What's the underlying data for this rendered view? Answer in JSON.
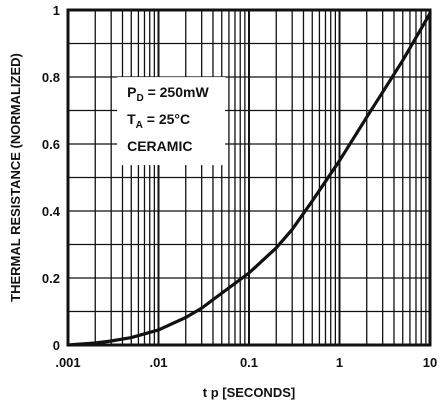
{
  "chart_data": {
    "type": "line",
    "title": "",
    "xlabel": "t p [SECONDS]",
    "ylabel": "THERMAL RESISTANCE (NORMALIZED)",
    "x_scale": "log",
    "xlim": [
      0.001,
      10
    ],
    "ylim": [
      0,
      1
    ],
    "grid": true,
    "x_ticks": [
      0.001,
      0.01,
      0.1,
      1,
      10
    ],
    "x_tick_labels": [
      ".001",
      ".01",
      "0.1",
      "1",
      "10"
    ],
    "y_ticks": [
      0,
      0.2,
      0.4,
      0.6,
      0.8,
      1
    ],
    "y_tick_labels": [
      "0",
      "0.2",
      "0.4",
      "0.6",
      "0.8",
      "1"
    ],
    "annotation": {
      "line1_main": "P",
      "line1_sub": "D",
      "line1_rest": " = 250mW",
      "line2_main": "T",
      "line2_sub": "A",
      "line2_rest": " = 25°C",
      "line3": "CERAMIC"
    },
    "series": [
      {
        "color": "#111111",
        "x": [
          0.001,
          0.002,
          0.003,
          0.005,
          0.01,
          0.02,
          0.03,
          0.05,
          0.1,
          0.2,
          0.3,
          0.5,
          1,
          2,
          3,
          5,
          10
        ],
        "y": [
          0.0,
          0.006,
          0.012,
          0.022,
          0.045,
          0.082,
          0.11,
          0.155,
          0.215,
          0.29,
          0.345,
          0.43,
          0.55,
          0.68,
          0.755,
          0.85,
          0.99
        ]
      }
    ]
  }
}
